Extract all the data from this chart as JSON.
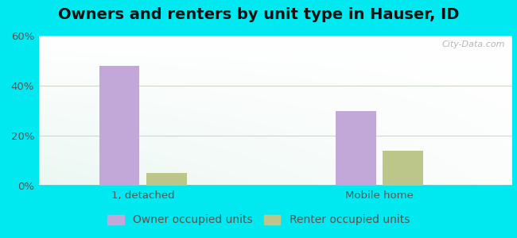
{
  "title": "Owners and renters by unit type in Hauser, ID",
  "categories": [
    "1, detached",
    "Mobile home"
  ],
  "owner_values": [
    48.0,
    30.0
  ],
  "renter_values": [
    5.0,
    14.0
  ],
  "owner_color": "#c2a8d8",
  "renter_color": "#bdc68a",
  "ylim": [
    0,
    60
  ],
  "yticks": [
    0,
    20,
    40,
    60
  ],
  "ytick_labels": [
    "0%",
    "20%",
    "40%",
    "60%"
  ],
  "background_outer": "#00e8f0",
  "grid_color": "#d0d8c8",
  "legend_owner": "Owner occupied units",
  "legend_renter": "Renter occupied units",
  "watermark": "City-Data.com",
  "title_fontsize": 14,
  "tick_fontsize": 9.5,
  "legend_fontsize": 10
}
